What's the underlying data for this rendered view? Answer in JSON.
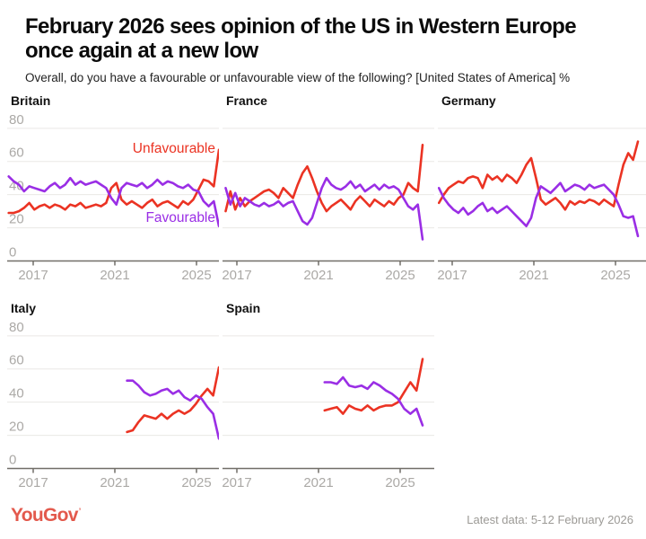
{
  "header": {
    "title_lines": [
      "February 2026 sees opinion of the US in Western Europe",
      "once again at a new low"
    ],
    "subtitle": "Overall, do you have a favourable or unfavourable view of the following? [United States of America] %"
  },
  "legend": {
    "unfavourable": "Unfavourable",
    "favourable": "Favourable"
  },
  "colors": {
    "unfavourable": "#EB3323",
    "favourable": "#9A2EE5",
    "gridline": "#EAE8E5",
    "axis": "#716E68",
    "tick_label": "#ABA9A6",
    "logo": "#E3594C"
  },
  "footer": {
    "logo": "YouGov",
    "logo_mark": "’",
    "latest": "Latest data: 5-12 February 2026"
  },
  "chart_data": [
    {
      "title": "Britain",
      "type": "line",
      "x_ticks": [
        2017,
        2021,
        2025
      ],
      "y_ticks": [
        80,
        60,
        40,
        20,
        0
      ],
      "ylim": [
        0,
        80
      ],
      "x_start": 2015.8,
      "x_end": 2026.1,
      "tick_offset": 29,
      "show_y_labels": true,
      "show_series_labels": true,
      "series": [
        {
          "name": "Unfavourable",
          "color_key": "unfavourable",
          "values": [
            29,
            29,
            30,
            32,
            35,
            31,
            33,
            34,
            32,
            34,
            33,
            31,
            34,
            33,
            35,
            32,
            33,
            34,
            33,
            35,
            44,
            47,
            37,
            34,
            36,
            34,
            32,
            35,
            37,
            33,
            35,
            36,
            34,
            32,
            36,
            34,
            37,
            43,
            49,
            48,
            45,
            67
          ]
        },
        {
          "name": "Favourable",
          "color_key": "favourable",
          "values": [
            51,
            48,
            46,
            42,
            45,
            44,
            43,
            42,
            45,
            47,
            44,
            46,
            50,
            46,
            48,
            46,
            47,
            48,
            46,
            44,
            38,
            34,
            44,
            47,
            46,
            45,
            47,
            44,
            46,
            49,
            46,
            48,
            47,
            45,
            44,
            46,
            43,
            42,
            36,
            33,
            36,
            21
          ]
        }
      ]
    },
    {
      "title": "France",
      "type": "line",
      "x_ticks": [
        2017,
        2021,
        2025
      ],
      "y_ticks": [
        80,
        60,
        40,
        20,
        0
      ],
      "ylim": [
        0,
        80
      ],
      "x_start": 2016.45,
      "x_end": 2026.1,
      "tick_offset": 16,
      "show_y_labels": false,
      "show_series_labels": false,
      "series": [
        {
          "name": "Unfavourable",
          "color_key": "unfavourable",
          "values": [
            30,
            42,
            31,
            38,
            33,
            36,
            38,
            40,
            42,
            43,
            41,
            38,
            44,
            41,
            38,
            46,
            53,
            57,
            50,
            42,
            35,
            30,
            33,
            35,
            37,
            34,
            31,
            36,
            39,
            36,
            33,
            37,
            35,
            33,
            36,
            34,
            38,
            40,
            47,
            44,
            42,
            70
          ]
        },
        {
          "name": "Favourable",
          "color_key": "favourable",
          "values": [
            44,
            34,
            41,
            33,
            38,
            36,
            34,
            33,
            35,
            33,
            34,
            36,
            33,
            35,
            36,
            30,
            24,
            22,
            26,
            35,
            44,
            50,
            46,
            44,
            43,
            45,
            48,
            44,
            46,
            42,
            44,
            46,
            43,
            46,
            44,
            45,
            43,
            38,
            33,
            31,
            34,
            13
          ]
        }
      ]
    },
    {
      "title": "Germany",
      "type": "line",
      "x_ticks": [
        2017,
        2021,
        2025
      ],
      "y_ticks": [
        80,
        60,
        40,
        20,
        0
      ],
      "ylim": [
        0,
        80
      ],
      "x_start": 2016.35,
      "x_end": 2026.1,
      "tick_offset": 16,
      "show_y_labels": false,
      "show_series_labels": false,
      "series": [
        {
          "name": "Unfavourable",
          "color_key": "unfavourable",
          "values": [
            35,
            40,
            44,
            46,
            48,
            47,
            50,
            51,
            50,
            44,
            52,
            49,
            51,
            48,
            52,
            50,
            47,
            52,
            58,
            62,
            50,
            37,
            34,
            36,
            38,
            35,
            31,
            36,
            34,
            36,
            35,
            37,
            36,
            34,
            37,
            35,
            33,
            46,
            58,
            65,
            61,
            72
          ]
        },
        {
          "name": "Favourable",
          "color_key": "favourable",
          "values": [
            44,
            38,
            34,
            31,
            29,
            32,
            28,
            30,
            33,
            35,
            30,
            32,
            29,
            31,
            33,
            30,
            27,
            24,
            21,
            26,
            38,
            45,
            43,
            41,
            44,
            47,
            42,
            44,
            46,
            45,
            43,
            46,
            44,
            45,
            46,
            43,
            40,
            34,
            27,
            26,
            27,
            15
          ]
        }
      ]
    },
    {
      "title": "Italy",
      "type": "line",
      "x_ticks": [
        2017,
        2021,
        2025
      ],
      "y_ticks": [
        80,
        60,
        40,
        20,
        0
      ],
      "ylim": [
        0,
        80
      ],
      "x_start": 2021.6,
      "x_end": 2026.1,
      "tick_offset": 29,
      "show_y_labels": true,
      "show_series_labels": false,
      "series": [
        {
          "name": "Unfavourable",
          "color_key": "unfavourable",
          "values": [
            22,
            23,
            28,
            32,
            31,
            30,
            33,
            30,
            33,
            35,
            33,
            35,
            39,
            44,
            48,
            44,
            61
          ]
        },
        {
          "name": "Favourable",
          "color_key": "favourable",
          "values": [
            53,
            53,
            50,
            46,
            44,
            45,
            47,
            48,
            45,
            47,
            43,
            41,
            44,
            42,
            37,
            33,
            18
          ]
        }
      ]
    },
    {
      "title": "Spain",
      "type": "line",
      "x_ticks": [
        2017,
        2021,
        2025
      ],
      "y_ticks": [
        80,
        60,
        40,
        20,
        0
      ],
      "ylim": [
        0,
        80
      ],
      "x_start": 2021.3,
      "x_end": 2026.1,
      "tick_offset": 16,
      "show_y_labels": false,
      "show_series_labels": false,
      "series": [
        {
          "name": "Unfavourable",
          "color_key": "unfavourable",
          "values": [
            35,
            36,
            37,
            33,
            38,
            36,
            35,
            38,
            35,
            37,
            38,
            38,
            40,
            46,
            52,
            47,
            66
          ]
        },
        {
          "name": "Favourable",
          "color_key": "favourable",
          "values": [
            52,
            52,
            51,
            55,
            50,
            49,
            50,
            48,
            52,
            50,
            47,
            45,
            42,
            36,
            33,
            36,
            26
          ]
        }
      ]
    }
  ]
}
